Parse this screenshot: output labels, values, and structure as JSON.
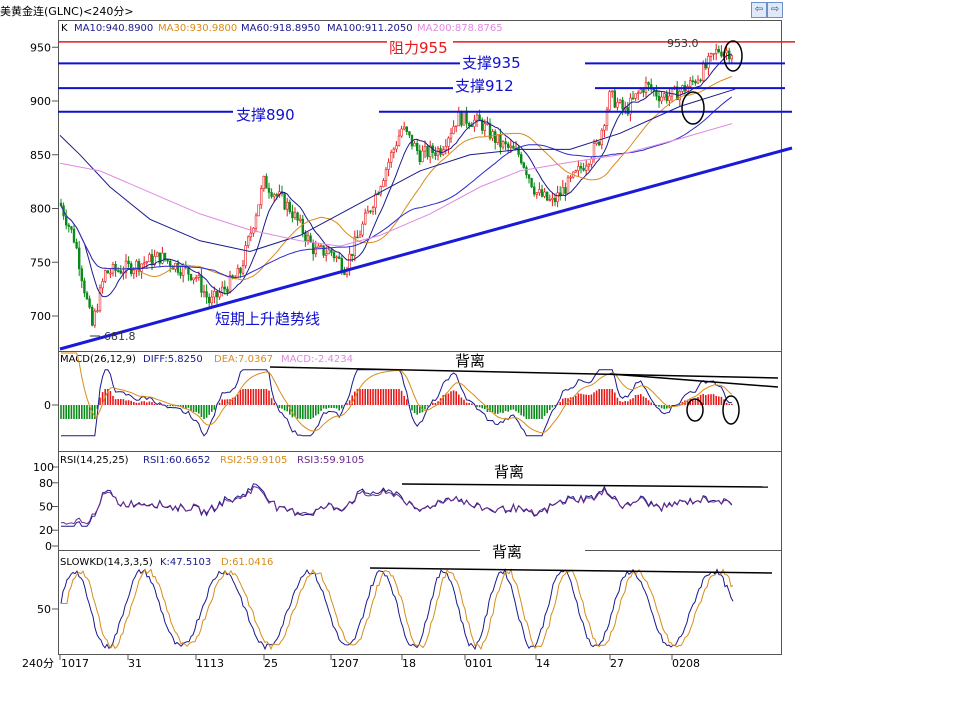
{
  "window": {
    "title": "美黄金连(GLNC)<240分>",
    "nav_prev_glyph": "⇦",
    "nav_next_glyph": "⇨"
  },
  "main_panel": {
    "indicator_k": "K",
    "ma_labels": [
      {
        "text": "MA10:940.8900",
        "color": "#1a1a8c"
      },
      {
        "text": "MA30:930.9800",
        "color": "#d98c1a"
      },
      {
        "text": "MA60:918.8950",
        "color": "#1a1a8c"
      },
      {
        "text": "MA100:911.2050",
        "color": "#1a1a8c"
      },
      {
        "text": "MA200:878.8765",
        "color": "#e08ae0"
      }
    ],
    "y_ticks": [
      "950",
      "900",
      "850",
      "800",
      "750",
      "700"
    ],
    "y_tick_values": [
      950,
      900,
      850,
      800,
      750,
      700
    ],
    "y_range": [
      671,
      978
    ],
    "high_label": "953.0",
    "low_label": "681.8",
    "annotations": {
      "resistance": "阻力955",
      "support935": "支撑935",
      "support912": "支撑912",
      "support890": "支撑890",
      "trendline": "短期上升趋势线"
    },
    "levels": {
      "resistance": 955,
      "support935": 935,
      "support912": 912,
      "support890": 890
    }
  },
  "macd_panel": {
    "label": "MACD(26,12,9)",
    "diff": "DIFF:5.8250",
    "dea": "DEA:7.0367",
    "macd": "MACD:-2.4234",
    "zero_tick": "0",
    "divergence": "背离"
  },
  "rsi_panel": {
    "label": "RSI(14,25,25)",
    "rsi1": "RSI1:60.6652",
    "rsi2": "RSI2:59.9105",
    "rsi3": "RSI3:59.9105",
    "y_ticks": [
      "100",
      "80",
      "50",
      "20",
      "0"
    ],
    "divergence": "背离"
  },
  "kd_panel": {
    "label": "SLOWKD(14,3,3,5)",
    "k": "K:47.5103",
    "d": "D:61.0416",
    "y_tick": "50",
    "divergence": "背离"
  },
  "x_axis": {
    "unit": "240分",
    "labels": [
      "1017",
      "31",
      "1113",
      "25",
      "1207",
      "18",
      "0101",
      "14",
      "27",
      "0208"
    ]
  },
  "colors": {
    "up": "#e8191b",
    "down": "#0a8a1a",
    "resistance": "#e8191b",
    "support": "#1010d0",
    "trendline": "#1a1ad8",
    "orange": "#d98c1a",
    "navy": "#1a1a8c",
    "pink": "#e08ae0"
  },
  "chart_data": {
    "type": "line",
    "x_label_positions": [
      "1017",
      "31",
      "1113",
      "25",
      "1207",
      "18",
      "0101",
      "14",
      "27",
      "0208"
    ],
    "price_path": [
      {
        "x": "1017",
        "y": 800
      },
      {
        "x": "31",
        "y": 745
      },
      {
        "x": "1113",
        "y": 737
      },
      {
        "x": "25",
        "y": 825
      },
      {
        "x": "1207",
        "y": 760
      },
      {
        "x": "18",
        "y": 875
      },
      {
        "x": "0101",
        "y": 870
      },
      {
        "x": "14",
        "y": 815
      },
      {
        "x": "27",
        "y": 905
      },
      {
        "x": "0208",
        "y": 905
      }
    ],
    "horizontal_levels": [
      955,
      935,
      912,
      890
    ],
    "price_high": 953.0,
    "price_low": 681.8
  }
}
